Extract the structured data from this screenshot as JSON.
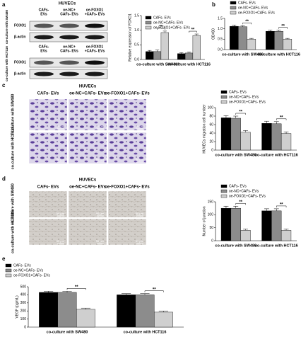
{
  "blot": {
    "panel_label": "a",
    "title": "HUVECs",
    "groups": [
      {
        "name": "co-culture with SW480",
        "columns": [
          [
            "CAFs-",
            "EVs"
          ],
          [
            "oe-NC+",
            "CAFs- EVs"
          ],
          [
            "oe-FOXO1",
            "+CAFs- EVs"
          ]
        ],
        "bands": [
          "FOXO1",
          "β-actin"
        ]
      },
      {
        "name": "co-culture with HCT116",
        "columns": [
          [
            "CAFs-",
            "EVs"
          ],
          [
            "oe-NC+",
            "CAFs- EVs"
          ],
          [
            "oe-FOXO1",
            "+CAFs- EVs"
          ]
        ],
        "bands": [
          "FOXO1",
          "β-actin"
        ]
      }
    ]
  },
  "migration": {
    "panel_label": "c",
    "title": "HUVECs",
    "columns": [
      "CAFs- EVs",
      "oe-NC+CAFs- EVs",
      "oe-FOXO1+CAFs- EVs"
    ],
    "rows": [
      "co-culture with SW480",
      "co-culture with HCT116"
    ],
    "scale_bar": "50 μm"
  },
  "tube": {
    "panel_label": "d",
    "title": "HUVECs",
    "columns": [
      "CAFs- EVs",
      "oe-NC+CAFs- EVs",
      "oe-FOXO1+CAFs- EVs"
    ],
    "rows": [
      "co-culture with SW480",
      "co-culture with HCT116"
    ],
    "scale_bar": "50 μm"
  },
  "chart_data": [
    {
      "type": "bar",
      "ylabel": "Relative expression of FOXO1",
      "categories": [
        "co-culture with SW480",
        "co-culture with HCT116"
      ],
      "series": [
        {
          "name": "CAFs- EVs",
          "color": "#000000",
          "values": [
            0.27,
            0.2
          ],
          "errors": [
            0.04,
            0.03
          ]
        },
        {
          "name": "oe-NC+CAFs- EVs",
          "color": "#8c8c8c",
          "values": [
            0.27,
            0.22
          ],
          "errors": [
            0.05,
            0.03
          ]
        },
        {
          "name": "oe-FOXO1+CAFs- EVs",
          "color": "#cfcfcf",
          "values": [
            0.92,
            0.82
          ],
          "errors": [
            0.05,
            0.05
          ]
        }
      ],
      "ylim": [
        0,
        1.5
      ],
      "yticks": [
        {
          "value": 0,
          "label": "0.0"
        },
        {
          "value": 0.5,
          "label": "0.5"
        },
        {
          "value": 1,
          "label": "1.0"
        },
        {
          "value": 1.5,
          "label": "1.5"
        }
      ],
      "annotations": [
        "**",
        "**"
      ],
      "legend": "inside"
    },
    {
      "type": "bar",
      "panel_label": "b",
      "ylabel": "OD490",
      "categories": [
        "co-culture with SW480",
        "co-culture with HCT116"
      ],
      "series": [
        {
          "name": "CAFs- EVs",
          "color": "#000000",
          "values": [
            1.12,
            0.88
          ],
          "errors": [
            0.06,
            0.05
          ]
        },
        {
          "name": "oe-NC+CAFs- EVs",
          "color": "#8c8c8c",
          "values": [
            1.1,
            0.88
          ],
          "errors": [
            0.05,
            0.05
          ]
        },
        {
          "name": "oe-FOXO1+CAFs- EVs",
          "color": "#cfcfcf",
          "values": [
            0.5,
            0.5
          ],
          "errors": [
            0.04,
            0.04
          ]
        }
      ],
      "ylim": [
        0,
        1.5
      ],
      "yticks": [
        {
          "value": 0,
          "label": "0.0"
        },
        {
          "value": 0.5,
          "label": "0.5"
        },
        {
          "value": 1,
          "label": "1.0"
        },
        {
          "value": 1.5,
          "label": "1.5"
        }
      ],
      "annotations": [
        "**",
        "**"
      ],
      "legend": "above"
    },
    {
      "type": "bar",
      "ylabel": "HUVECs migration cell number",
      "categories": [
        "co-culture with SW480",
        "co-culture with HCT116"
      ],
      "series": [
        {
          "name": "CAFs- EVs",
          "color": "#000000",
          "values": [
            76,
            63
          ],
          "errors": [
            5,
            5
          ]
        },
        {
          "name": "oe-NC+CAFs- EVs",
          "color": "#8c8c8c",
          "values": [
            75,
            62
          ],
          "errors": [
            5,
            5
          ]
        },
        {
          "name": "oe-FOXO1+CAFs- EVs",
          "color": "#cfcfcf",
          "values": [
            42,
            39
          ],
          "errors": [
            4,
            4
          ]
        }
      ],
      "ylim": [
        0,
        100
      ],
      "yticks": [
        0,
        20,
        40,
        60,
        80,
        100
      ],
      "annotations": [
        "**",
        "**"
      ],
      "legend": "above"
    },
    {
      "type": "bar",
      "ylabel": "Number of junction",
      "categories": [
        "co-culture with SW480",
        "co-culture with HCT116"
      ],
      "series": [
        {
          "name": "CAFs- EVs",
          "color": "#000000",
          "values": [
            125,
            115
          ],
          "errors": [
            8,
            8
          ]
        },
        {
          "name": "oe-NC+CAFs- EVs",
          "color": "#8c8c8c",
          "values": [
            125,
            115
          ],
          "errors": [
            8,
            8
          ]
        },
        {
          "name": "oe-FOXO1+CAFs- EVs",
          "color": "#cfcfcf",
          "values": [
            40,
            40
          ],
          "errors": [
            5,
            5
          ]
        }
      ],
      "ylim": [
        0,
        150
      ],
      "yticks": [
        0,
        50,
        100,
        150
      ],
      "annotations": [
        "**",
        "**"
      ],
      "legend": "above"
    },
    {
      "type": "bar",
      "panel_label": "e",
      "ylabel": "VEGF (pg/mL)",
      "categories": [
        "co-culture with SW480",
        "co-culture with HCT116"
      ],
      "series": [
        {
          "name": "CAFs- EVs",
          "color": "#000000",
          "values": [
            430,
            400
          ],
          "errors": [
            15,
            15
          ]
        },
        {
          "name": "oe-NC+CAFs- EVs",
          "color": "#8c8c8c",
          "values": [
            430,
            400
          ],
          "errors": [
            15,
            15
          ]
        },
        {
          "name": "oe-FOXO1+CAFs- EVs",
          "color": "#cfcfcf",
          "values": [
            220,
            185
          ],
          "errors": [
            15,
            15
          ]
        }
      ],
      "ylim": [
        0,
        500
      ],
      "yticks": [
        0,
        100,
        200,
        300,
        400,
        500
      ],
      "annotations": [
        "**",
        "**"
      ],
      "legend": "above-left"
    }
  ]
}
